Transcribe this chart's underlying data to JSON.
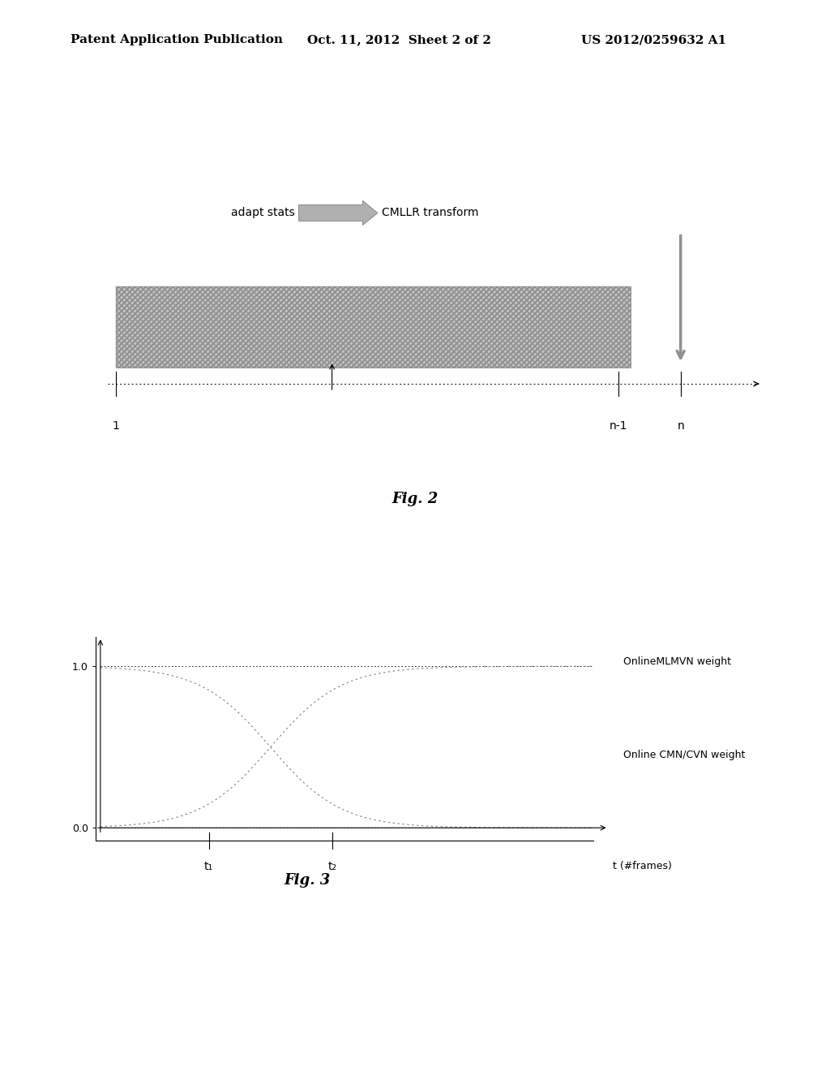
{
  "background_color": "#ffffff",
  "header_text": "Patent Application Publication",
  "header_date": "Oct. 11, 2012  Sheet 2 of 2",
  "header_patent": "US 2012/0259632 A1",
  "header_fontsize": 11,
  "fig2_label": "Fig. 2",
  "fig3_label": "Fig. 3",
  "fig2_adapt_stats": "adapt stats",
  "fig2_cmllr": "CMLLR transform",
  "fig2_label1": "1",
  "fig2_label_n1": "n-1",
  "fig2_label_n": "n",
  "fig3_ylabel_10": "1.0",
  "fig3_ylabel_00": "0.0",
  "fig3_xlabel": "t (#frames)",
  "fig3_t1": "t₁",
  "fig3_t2": "t₂",
  "fig3_label_mlmvn": "OnlineMLMVN weight",
  "fig3_label_cmn": "Online CMN/CVN weight",
  "bar_color": "#b8b8b8",
  "arrow_color": "#a0a0a0",
  "line_color": "#888888",
  "curve_color": "#888888"
}
